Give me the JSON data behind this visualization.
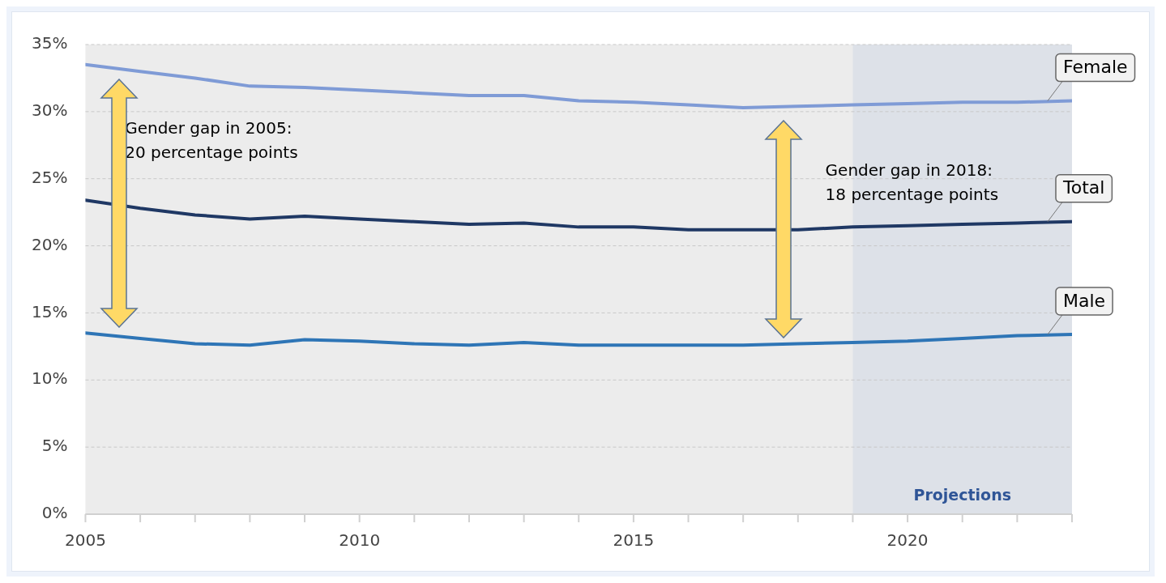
{
  "chart_data": {
    "type": "line",
    "x": [
      2005,
      2006,
      2007,
      2008,
      2009,
      2010,
      2011,
      2012,
      2013,
      2014,
      2015,
      2016,
      2017,
      2018,
      2019,
      2020,
      2021,
      2022,
      2023
    ],
    "series": [
      {
        "name": "Female",
        "color": "#7f9bd6",
        "values": [
          33.5,
          33.0,
          32.5,
          31.9,
          31.8,
          31.6,
          31.4,
          31.2,
          31.2,
          30.8,
          30.7,
          30.5,
          30.3,
          30.4,
          30.5,
          30.6,
          30.7,
          30.7,
          30.8
        ]
      },
      {
        "name": "Total",
        "color": "#1f3864",
        "values": [
          23.4,
          22.8,
          22.3,
          22.0,
          22.2,
          22.0,
          21.8,
          21.6,
          21.7,
          21.4,
          21.4,
          21.2,
          21.2,
          21.2,
          21.4,
          21.5,
          21.6,
          21.7,
          21.8
        ]
      },
      {
        "name": "Male",
        "color": "#2e75b6",
        "values": [
          13.5,
          13.1,
          12.7,
          12.6,
          13.0,
          12.9,
          12.7,
          12.6,
          12.8,
          12.6,
          12.6,
          12.6,
          12.6,
          12.7,
          12.8,
          12.9,
          13.1,
          13.3,
          13.4
        ]
      }
    ],
    "xlim": [
      2005,
      2023
    ],
    "xticks": [
      2005,
      {
        "value": 2006,
        "label": null
      },
      {
        "value": 2007,
        "label": null
      },
      {
        "value": 2008,
        "label": null
      },
      {
        "value": 2009,
        "label": null
      },
      2010,
      {
        "value": 2011,
        "label": null
      },
      {
        "value": 2012,
        "label": null
      },
      {
        "value": 2013,
        "label": null
      },
      {
        "value": 2014,
        "label": null
      },
      2015,
      {
        "value": 2016,
        "label": null
      },
      {
        "value": 2017,
        "label": null
      },
      {
        "value": 2018,
        "label": null
      },
      {
        "value": 2019,
        "label": null
      },
      2020,
      {
        "value": 2021,
        "label": null
      },
      {
        "value": 2022,
        "label": null
      },
      {
        "value": 2023,
        "label": null
      }
    ],
    "ylim": [
      0,
      35
    ],
    "yticks": [
      {
        "value": 0,
        "label": "0%"
      },
      {
        "value": 5,
        "label": "5%"
      },
      {
        "value": 10,
        "label": "10%"
      },
      {
        "value": 15,
        "label": "15%"
      },
      {
        "value": 20,
        "label": "20%"
      },
      {
        "value": 25,
        "label": "25%"
      },
      {
        "value": 30,
        "label": "30%"
      },
      {
        "value": 35,
        "label": "35%"
      }
    ],
    "grid": "y",
    "line_style": "solid",
    "marker": "none",
    "bands": [
      {
        "axis": "x",
        "from": 2019,
        "to": 2023,
        "label": "Projections",
        "color": "#dde1e8"
      }
    ],
    "annotations": [
      "Gender gap in 2005:\n20 percentage points",
      "Gender gap in 2018:\n18 percentage points"
    ]
  }
}
